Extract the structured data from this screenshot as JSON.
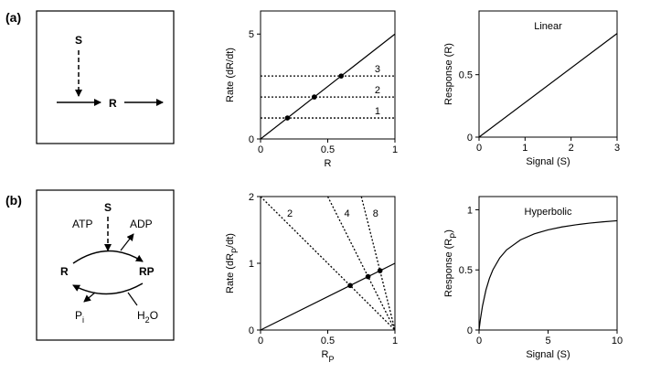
{
  "panels": [
    {
      "label": "(a)",
      "diagram": {
        "signal": "S",
        "product": "R"
      }
    },
    {
      "label": "(b)",
      "diagram": {
        "signal": "S",
        "atp": "ATP",
        "adp": "ADP",
        "r": "R",
        "rp": "RP",
        "pi": [
          "P",
          "i"
        ],
        "h2o": [
          "H",
          "2",
          "O"
        ]
      }
    }
  ],
  "chart_data": [
    {
      "type": "line",
      "y_label": [
        "Rate (dR/dt)"
      ],
      "x_label": [
        "R"
      ],
      "xlim": [
        0,
        1
      ],
      "ylim": [
        0,
        6.1
      ],
      "xticks": [
        0,
        0.5,
        1
      ],
      "yticks": [
        0,
        5
      ],
      "color": "#000000",
      "series": [
        {
          "style": "solid",
          "x": [
            0,
            1
          ],
          "values": [
            0,
            5
          ]
        },
        {
          "style": "dotted",
          "label": "1",
          "x": [
            0,
            1
          ],
          "values": [
            1,
            1
          ]
        },
        {
          "style": "dotted",
          "label": "2",
          "x": [
            0,
            1
          ],
          "values": [
            2,
            2
          ]
        },
        {
          "style": "dotted",
          "label": "3",
          "x": [
            0,
            1
          ],
          "values": [
            3,
            3
          ]
        },
        {
          "style": "points",
          "x": [
            0.2,
            0.4,
            0.6
          ],
          "values": [
            1,
            2,
            3
          ]
        }
      ]
    },
    {
      "type": "line",
      "title": "Linear",
      "y_label": [
        "Response (R)"
      ],
      "x_label": [
        "Signal (S)"
      ],
      "xlim": [
        0,
        3
      ],
      "ylim": [
        0,
        1.01
      ],
      "xticks": [
        0,
        1,
        2,
        3
      ],
      "yticks": [
        0,
        0.5
      ],
      "color": "#000000",
      "series": [
        {
          "style": "solid",
          "x": [
            0,
            3
          ],
          "values": [
            0,
            0.83
          ]
        }
      ]
    },
    {
      "type": "line",
      "y_label": [
        "Rate (dR",
        "P",
        "/dt)"
      ],
      "x_label": [
        "R",
        "P"
      ],
      "xlim": [
        0,
        1
      ],
      "ylim": [
        0,
        2
      ],
      "xticks": [
        0,
        0.5,
        1
      ],
      "yticks": [
        0,
        1,
        2
      ],
      "color": "#000000",
      "series": [
        {
          "style": "solid",
          "x": [
            0,
            1
          ],
          "values": [
            0,
            1
          ]
        },
        {
          "style": "dotted",
          "label": "2",
          "x": [
            0,
            1
          ],
          "values": [
            2,
            0
          ]
        },
        {
          "style": "dotted",
          "label": "4",
          "x": [
            0.5,
            1
          ],
          "values": [
            2,
            0
          ]
        },
        {
          "style": "dotted",
          "label": "8",
          "x": [
            0.75,
            1
          ],
          "values": [
            2,
            0
          ]
        },
        {
          "style": "points",
          "x": [
            0.667,
            0.8,
            0.889
          ],
          "values": [
            0.667,
            0.8,
            0.889
          ]
        }
      ]
    },
    {
      "type": "line",
      "title": "Hyperbolic",
      "y_label": [
        "Response (R",
        "P",
        ")"
      ],
      "x_label": [
        "Signal (S)"
      ],
      "xlim": [
        0,
        10
      ],
      "ylim": [
        0,
        1.11
      ],
      "xticks": [
        0,
        5,
        10
      ],
      "yticks": [
        0,
        0.5,
        1
      ],
      "color": "#000000",
      "series": [
        {
          "style": "solid",
          "x": [
            0,
            0.1,
            0.25,
            0.5,
            0.75,
            1,
            1.5,
            2,
            3,
            4,
            5,
            6,
            7,
            8,
            9,
            10
          ],
          "values": [
            0,
            0.091,
            0.2,
            0.333,
            0.429,
            0.5,
            0.6,
            0.667,
            0.75,
            0.8,
            0.833,
            0.857,
            0.875,
            0.889,
            0.9,
            0.909
          ]
        }
      ]
    }
  ]
}
